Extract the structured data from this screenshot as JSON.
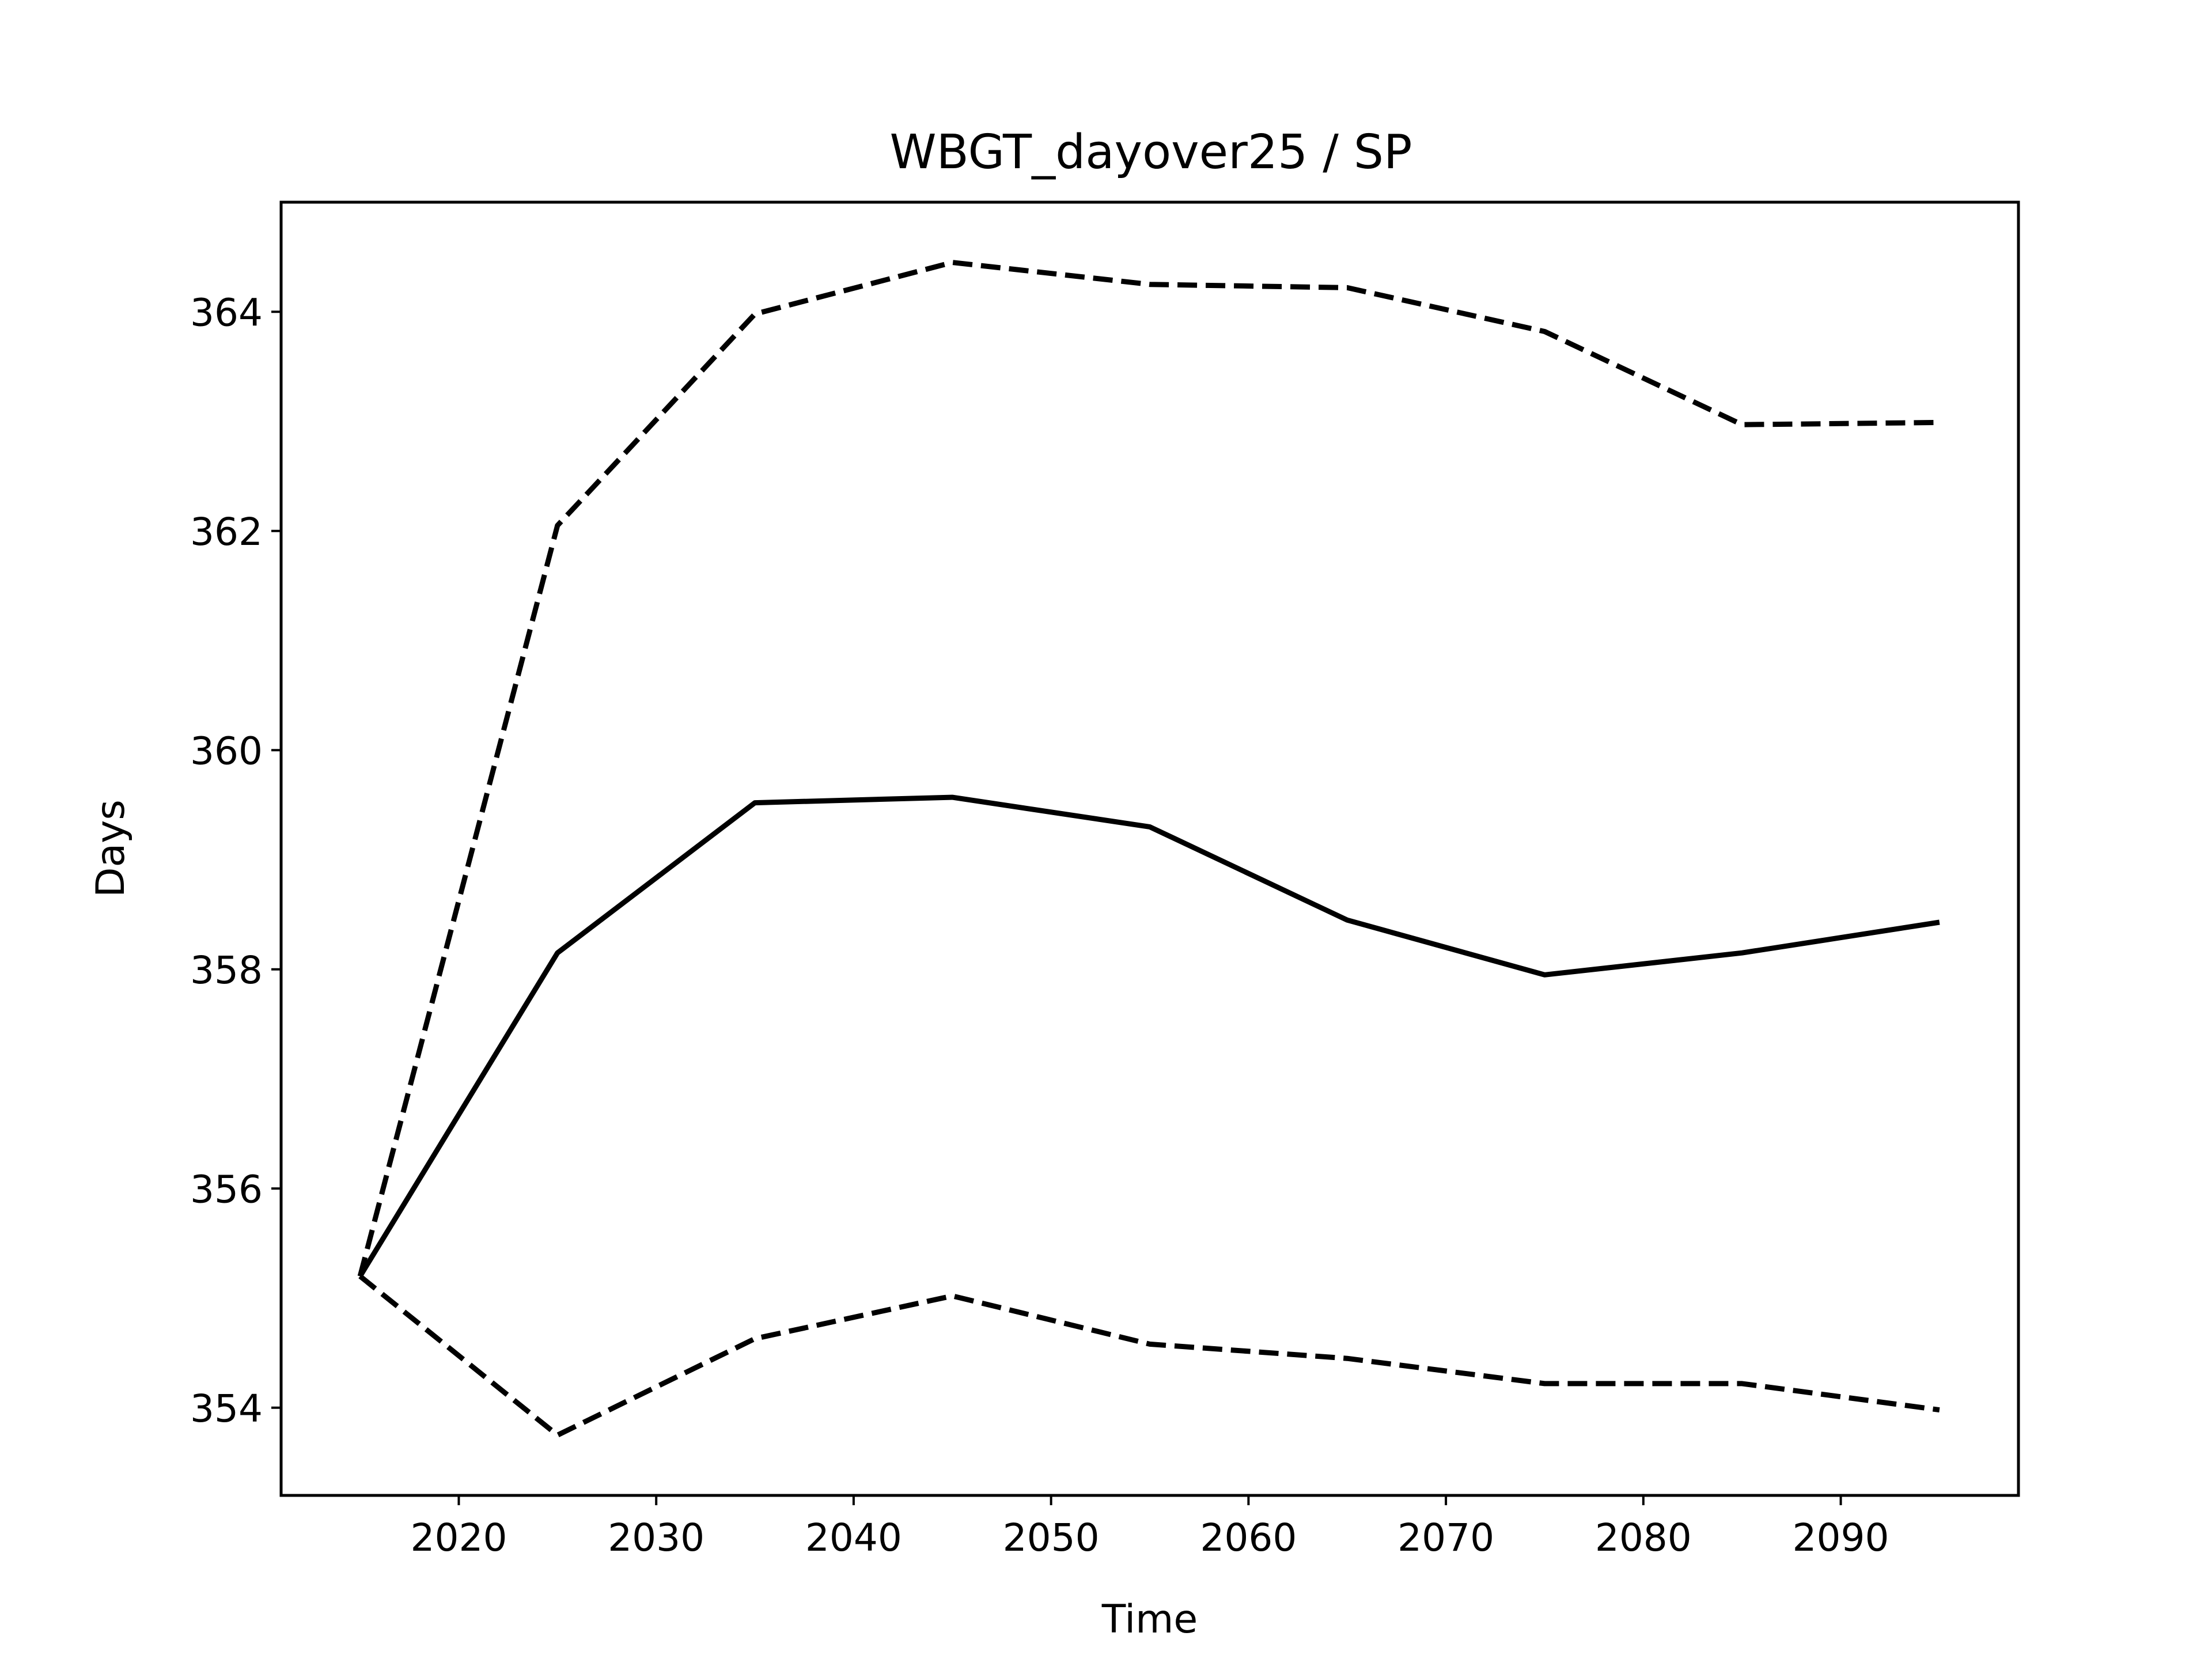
{
  "chart_data": {
    "type": "line",
    "title": "WBGT_dayover25 / SP",
    "xlabel": "Time",
    "ylabel": "Days",
    "x": [
      2015,
      2025,
      2035,
      2045,
      2055,
      2065,
      2075,
      2085,
      2095
    ],
    "series": [
      {
        "style": "solid",
        "values": [
          355.2,
          358.15,
          359.52,
          359.57,
          359.3,
          358.45,
          357.95,
          358.15,
          358.43
        ]
      },
      {
        "style": "dashed",
        "values": [
          355.2,
          362.05,
          363.98,
          364.45,
          364.25,
          364.22,
          363.82,
          362.97,
          362.99
        ]
      },
      {
        "style": "dashed",
        "values": [
          355.2,
          353.75,
          354.63,
          355.02,
          354.58,
          354.45,
          354.22,
          354.22,
          353.98
        ]
      }
    ],
    "xlim": [
      2011,
      2099
    ],
    "ylim": [
      353.2,
      365.0
    ],
    "xticks": [
      2020,
      2030,
      2040,
      2050,
      2060,
      2070,
      2080,
      2090
    ],
    "yticks": [
      354,
      356,
      358,
      360,
      362,
      364
    ],
    "grid": false,
    "legend": false,
    "line_color": "#000000"
  }
}
